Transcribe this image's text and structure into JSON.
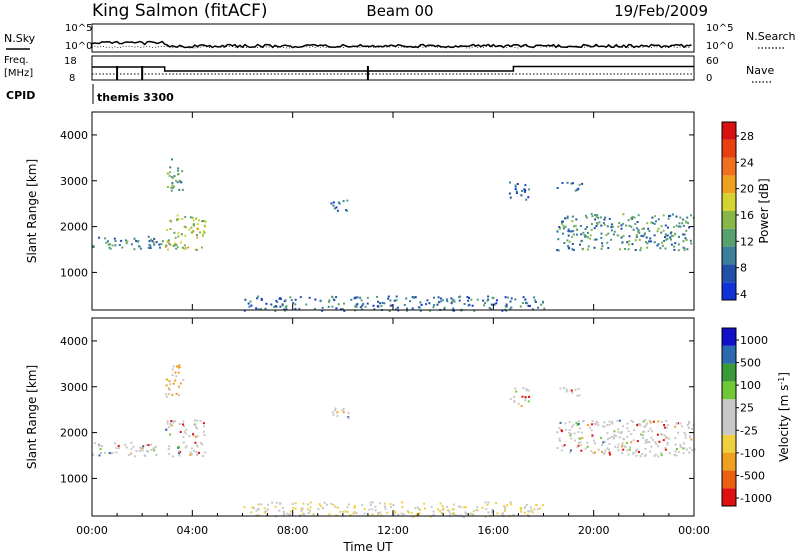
{
  "header": {
    "site": "King Salmon (fitACF)",
    "beam": "Beam 00",
    "date": "19/Feb/2009"
  },
  "noise_panel": {
    "left_label": "N.Sky",
    "right_label": "N.Search",
    "ticks": [
      "10^5",
      "10^0"
    ]
  },
  "freq_panel": {
    "left_label_1": "Freq.",
    "left_label_2": "[MHz]",
    "left_ticks": [
      "18",
      "8"
    ],
    "right_label": "Nave",
    "right_ticks": [
      "60",
      "0"
    ]
  },
  "cpid": {
    "label": "CPID",
    "value": "themis 3300"
  },
  "x_axis": {
    "ticks": [
      "00:00",
      "04:00",
      "08:00",
      "12:00",
      "16:00",
      "20:00",
      "00:00"
    ],
    "label": "Time UT"
  },
  "colors": {
    "power_scale": [
      "#1030d8",
      "#2050a8",
      "#3a7f9c",
      "#58a070",
      "#86b848",
      "#d4d430",
      "#f0a020",
      "#f07020",
      "#e84010",
      "#d81010"
    ],
    "velocity_scale": [
      "#e01010",
      "#e86010",
      "#f0a020",
      "#f0d040",
      "#c8c8c8",
      "#c8c8c8",
      "#70c838",
      "#3a9a3a",
      "#2c6ab0",
      "#1010c8"
    ]
  },
  "chart_data": [
    {
      "type": "heatmap",
      "title": "Power",
      "ylabel": "Slant Range [km]",
      "xlabel": "",
      "x_range_hours": [
        0,
        24
      ],
      "ylim": [
        180,
        4500
      ],
      "y_ticks": [
        1000,
        2000,
        3000,
        4000
      ],
      "colorbar": {
        "label": "Power [dB]",
        "ticks": [
          "28",
          "24",
          "20",
          "16",
          "12",
          "8",
          "4"
        ],
        "range": [
          0,
          30
        ]
      },
      "scatter_regions": [
        {
          "t": [
            0.0,
            2.8
          ],
          "r": [
            1500,
            1800
          ],
          "value": 8
        },
        {
          "t": [
            2.9,
            3.6
          ],
          "r": [
            2800,
            3500
          ],
          "value": 10
        },
        {
          "t": [
            2.9,
            4.5
          ],
          "r": [
            1500,
            2300
          ],
          "value": 14
        },
        {
          "t": [
            9.5,
            10.2
          ],
          "r": [
            2300,
            2600
          ],
          "value": 6
        },
        {
          "t": [
            16.6,
            17.4
          ],
          "r": [
            2600,
            3000
          ],
          "value": 6
        },
        {
          "t": [
            18.5,
            19.5
          ],
          "r": [
            2800,
            3000
          ],
          "value": 6
        },
        {
          "t": [
            18.5,
            24.0
          ],
          "r": [
            1500,
            2300
          ],
          "value": 9
        },
        {
          "t": [
            6.0,
            18.0
          ],
          "r": [
            180,
            500
          ],
          "value": 7
        }
      ]
    },
    {
      "type": "heatmap",
      "title": "Velocity",
      "ylabel": "Slant Range [km]",
      "xlabel": "Time UT",
      "x_range_hours": [
        0,
        24
      ],
      "ylim": [
        180,
        4500
      ],
      "y_ticks": [
        1000,
        2000,
        3000,
        4000
      ],
      "colorbar": {
        "label": "Velocity [m s-1]",
        "ticks": [
          "1000",
          "500",
          "100",
          "25",
          "-25",
          "-100",
          "-500",
          "-1000"
        ],
        "range": [
          -1000,
          1000
        ]
      },
      "scatter_regions": [
        {
          "t": [
            0.0,
            2.8
          ],
          "r": [
            1500,
            1800
          ],
          "value": 0
        },
        {
          "t": [
            2.9,
            3.6
          ],
          "r": [
            2800,
            3500
          ],
          "value": -100
        },
        {
          "t": [
            2.9,
            4.5
          ],
          "r": [
            1500,
            2300
          ],
          "value": 0
        },
        {
          "t": [
            9.5,
            10.2
          ],
          "r": [
            2300,
            2600
          ],
          "value": 0
        },
        {
          "t": [
            16.6,
            17.4
          ],
          "r": [
            2600,
            3000
          ],
          "value": 0
        },
        {
          "t": [
            18.5,
            19.5
          ],
          "r": [
            2800,
            3000
          ],
          "value": 0
        },
        {
          "t": [
            18.5,
            24.0
          ],
          "r": [
            1500,
            2300
          ],
          "value": 0
        },
        {
          "t": [
            6.0,
            18.0
          ],
          "r": [
            180,
            500
          ],
          "value": -50
        }
      ]
    }
  ]
}
